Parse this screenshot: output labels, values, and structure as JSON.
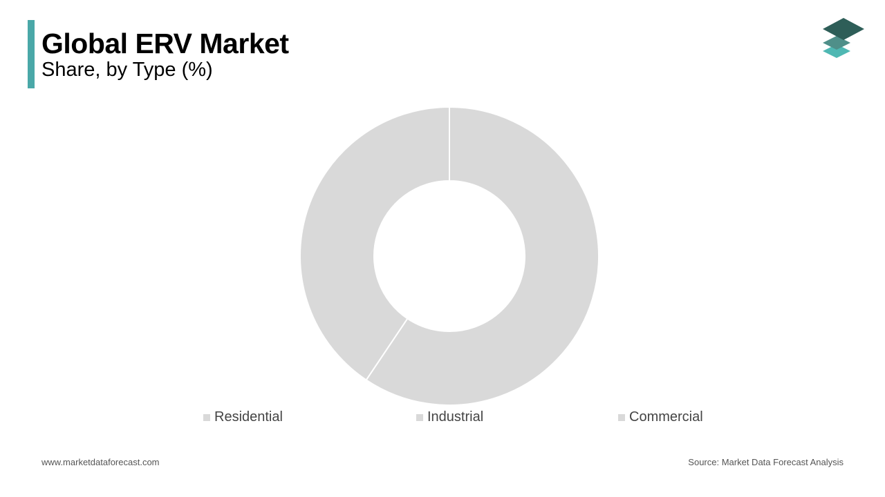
{
  "header": {
    "title": "Global ERV Market",
    "subtitle": "Share, by Type (%)"
  },
  "colors": {
    "accent": "#4aa8a8",
    "slice": "#d9d9d9",
    "separator": "#ffffff",
    "logo_top": "#2e5e58",
    "logo_mid": "#4f8f89",
    "logo_bottom": "#4fb8b3"
  },
  "icons": {
    "logo": "stacked-layers-logo-icon"
  },
  "chart_data": {
    "type": "pie",
    "donut": true,
    "title": "Global ERV Market",
    "subtitle": "Share, by Type (%)",
    "categories": [
      "Residential",
      "Industrial",
      "Commercial"
    ],
    "values": [
      59.4,
      40.6,
      0
    ],
    "legend_position": "bottom",
    "data_labels": false
  },
  "footer": {
    "website": "www.marketdataforecast.com",
    "source": "Source: Market Data Forecast Analysis"
  }
}
